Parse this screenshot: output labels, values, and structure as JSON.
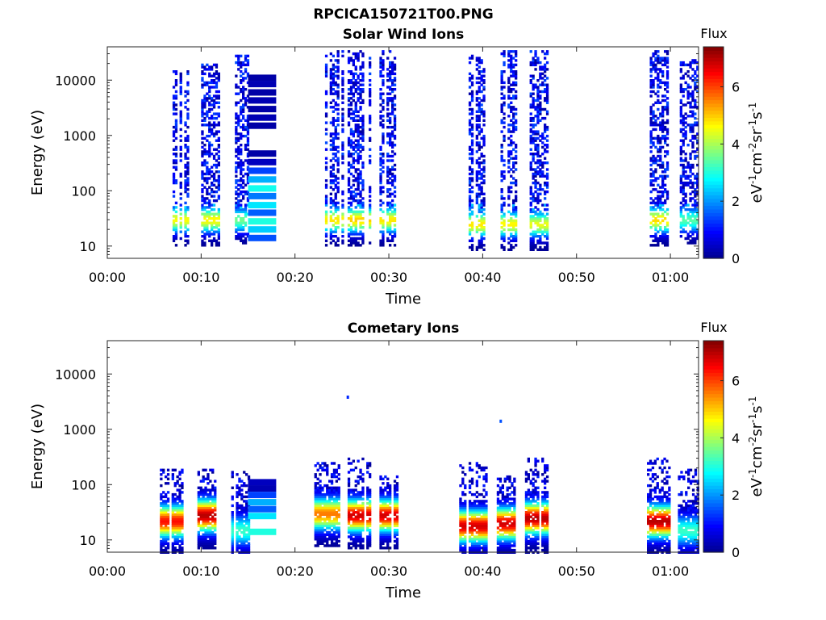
{
  "figure": {
    "title": "RPCICA150721T00.PNG"
  },
  "colormap": [
    "#00008f",
    "#0000ff",
    "#0080ff",
    "#00ffff",
    "#80ff80",
    "#ffff00",
    "#ff8000",
    "#ff0000",
    "#800000"
  ],
  "chart_data": [
    {
      "type": "heatmap",
      "title": "Solar Wind Ions",
      "xlabel": "Time",
      "ylabel": "Energy (eV)",
      "x_unit": "minutes since 00:00",
      "xlim": [
        0,
        63
      ],
      "x_ticks": [
        "00:00",
        "00:10",
        "00:20",
        "00:30",
        "00:40",
        "00:50",
        "01:00"
      ],
      "y_scale": "log",
      "ylim": [
        6,
        40000
      ],
      "y_ticks": [
        "10",
        "100",
        "1000",
        "10000"
      ],
      "colorbar": {
        "title": "Flux",
        "label": "eV-1cm-2sr-1s-1",
        "range": [
          0,
          7.4
        ],
        "ticks": [
          "0",
          "2",
          "4",
          "6"
        ]
      },
      "bursts": [
        {
          "t0": 6.7,
          "t1": 8.7,
          "emax": 15000,
          "peak_e": 30,
          "peak_v": 4.6
        },
        {
          "t0": 10.0,
          "t1": 11.8,
          "emax": 20000,
          "peak_e": 30,
          "peak_v": 4.7
        },
        {
          "t0": 13.6,
          "t1": 15.0,
          "emax": 30000,
          "peak_e": 30,
          "peak_v": 3.6
        },
        {
          "t0": 23.2,
          "t1": 25.0,
          "emax": 35000,
          "peak_e": 30,
          "peak_v": 4.8
        },
        {
          "t0": 25.6,
          "t1": 28.0,
          "emax": 35000,
          "peak_e": 30,
          "peak_v": 5.0
        },
        {
          "t0": 29.0,
          "t1": 31.2,
          "emax": 35000,
          "peak_e": 30,
          "peak_v": 4.8
        },
        {
          "t0": 38.5,
          "t1": 40.6,
          "emax": 30000,
          "peak_e": 25,
          "peak_v": 4.8
        },
        {
          "t0": 41.9,
          "t1": 43.5,
          "emax": 35000,
          "peak_e": 25,
          "peak_v": 4.7
        },
        {
          "t0": 45.0,
          "t1": 46.8,
          "emax": 35000,
          "peak_e": 25,
          "peak_v": 4.5
        },
        {
          "t0": 57.8,
          "t1": 59.8,
          "emax": 35000,
          "peak_e": 30,
          "peak_v": 4.9
        },
        {
          "t0": 61.0,
          "t1": 63.0,
          "emax": 25000,
          "peak_e": 30,
          "peak_v": 3.4
        }
      ],
      "sweep_block": {
        "t0": 15.0,
        "t1": 18.0,
        "stripes": [
          {
            "e": 11000,
            "v": 0.2
          },
          {
            "e": 8500,
            "v": 0.3
          },
          {
            "e": 6000,
            "v": 0.2
          },
          {
            "e": 4300,
            "v": 0.3
          },
          {
            "e": 3000,
            "v": 0.2
          },
          {
            "e": 2100,
            "v": 0.3
          },
          {
            "e": 1500,
            "v": 0.2
          },
          {
            "e": 470,
            "v": 0.2
          },
          {
            "e": 330,
            "v": 0.4
          },
          {
            "e": 230,
            "v": 1.4
          },
          {
            "e": 160,
            "v": 2.2
          },
          {
            "e": 110,
            "v": 2.9
          },
          {
            "e": 80,
            "v": 1.8
          },
          {
            "e": 55,
            "v": 2.6
          },
          {
            "e": 40,
            "v": 1.6
          },
          {
            "e": 28,
            "v": 3.0
          },
          {
            "e": 20,
            "v": 2.4
          },
          {
            "e": 14,
            "v": 1.5
          }
        ]
      }
    },
    {
      "type": "heatmap",
      "title": "Cometary Ions",
      "xlabel": "Time",
      "ylabel": "Energy (eV)",
      "x_unit": "minutes since 00:00",
      "xlim": [
        0,
        63
      ],
      "x_ticks": [
        "00:00",
        "00:10",
        "00:20",
        "00:30",
        "00:40",
        "00:50",
        "01:00"
      ],
      "y_scale": "log",
      "ylim": [
        6,
        40000
      ],
      "y_ticks": [
        "10",
        "100",
        "1000",
        "10000"
      ],
      "colorbar": {
        "title": "Flux",
        "label": "eV-1cm-2sr-1s-1",
        "range": [
          0,
          7.4
        ],
        "ticks": [
          "0",
          "2",
          "4",
          "6"
        ]
      },
      "bursts": [
        {
          "t0": 5.6,
          "t1": 8.0,
          "emax": 200,
          "peak_e": 22,
          "peak_v": 6.4
        },
        {
          "t0": 9.6,
          "t1": 11.5,
          "emax": 200,
          "peak_e": 28,
          "peak_v": 7.0
        },
        {
          "t0": 13.2,
          "t1": 15.0,
          "emax": 180,
          "peak_e": 15,
          "peak_v": 3.2
        },
        {
          "t0": 21.8,
          "t1": 24.8,
          "emax": 250,
          "peak_e": 30,
          "peak_v": 5.6
        },
        {
          "t0": 25.6,
          "t1": 28.0,
          "emax": 300,
          "peak_e": 28,
          "peak_v": 6.8
        },
        {
          "t0": 29.0,
          "t1": 31.0,
          "emax": 150,
          "peak_e": 28,
          "peak_v": 6.8
        },
        {
          "t0": 37.5,
          "t1": 40.5,
          "emax": 250,
          "peak_e": 18,
          "peak_v": 6.8
        },
        {
          "t0": 41.5,
          "t1": 43.5,
          "emax": 150,
          "peak_e": 20,
          "peak_v": 6.8
        },
        {
          "t0": 44.5,
          "t1": 47.0,
          "emax": 300,
          "peak_e": 25,
          "peak_v": 7.0
        },
        {
          "t0": 57.5,
          "t1": 60.0,
          "emax": 300,
          "peak_e": 22,
          "peak_v": 7.0
        },
        {
          "t0": 60.8,
          "t1": 63.0,
          "emax": 200,
          "peak_e": 15,
          "peak_v": 3.2
        }
      ],
      "outliers": [
        {
          "t": 25.5,
          "e": 3800,
          "v": 1.2
        },
        {
          "t": 41.8,
          "e": 1400,
          "v": 1.5
        }
      ],
      "sweep_block": {
        "t0": 15.0,
        "t1": 18.0,
        "stripes": [
          {
            "e": 110,
            "v": 0.4
          },
          {
            "e": 85,
            "v": 0.3
          },
          {
            "e": 65,
            "v": 1.4
          },
          {
            "e": 48,
            "v": 2.2
          },
          {
            "e": 36,
            "v": 1.6
          },
          {
            "e": 27,
            "v": 2.6
          },
          {
            "e": 14,
            "v": 3.0
          }
        ]
      }
    }
  ]
}
